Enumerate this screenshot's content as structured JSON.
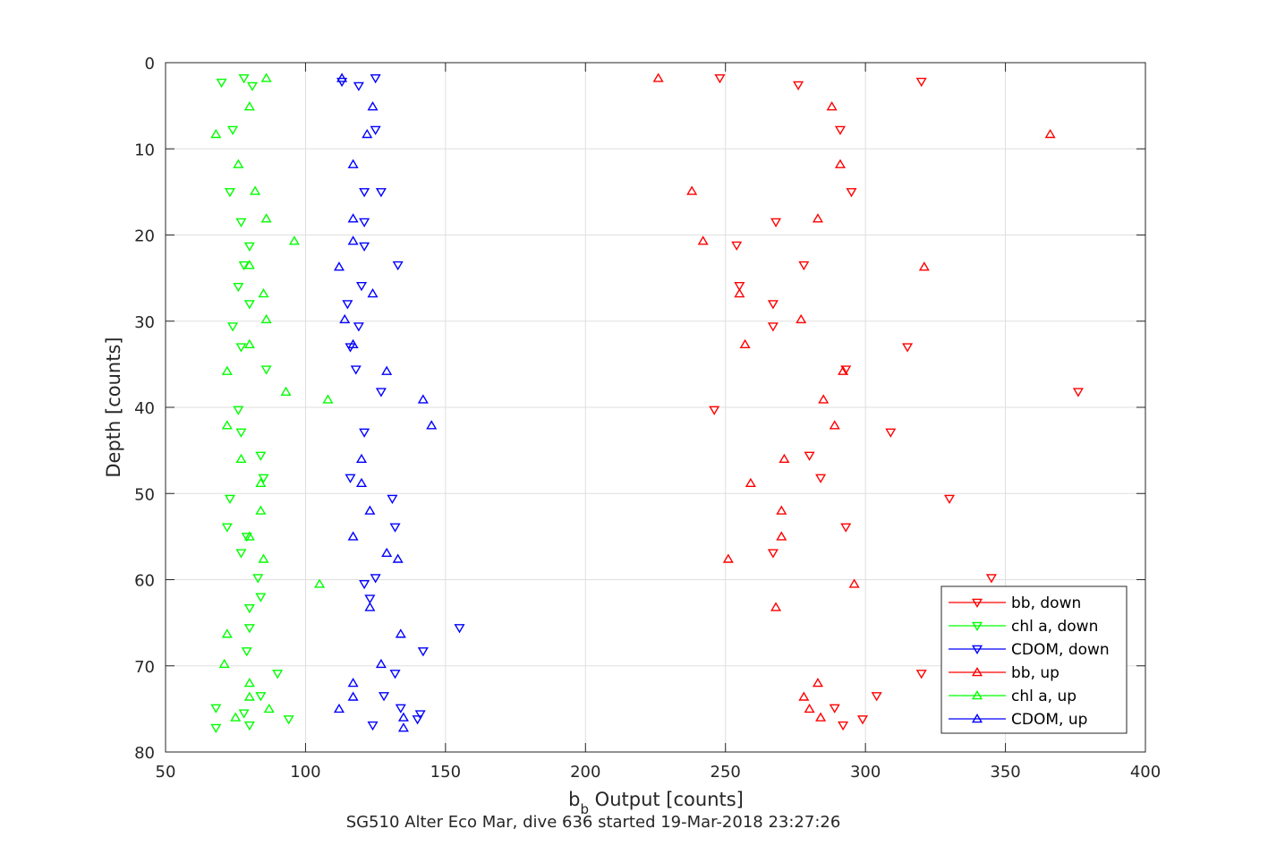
{
  "chart_data": {
    "type": "scatter",
    "xlabel_main": "b",
    "xlabel_sub": "b",
    "xlabel_rest": " Output [counts]",
    "ylabel": "Depth [counts]",
    "subtitle": "SG510 Alter Eco Mar, dive 636 started 19-Mar-2018 23:27:26",
    "xlim": [
      50,
      400
    ],
    "ylim": [
      0,
      80
    ],
    "y_reversed": true,
    "grid": true,
    "legend_position": "bottom-right",
    "xticks": [
      50,
      100,
      150,
      200,
      250,
      300,
      350,
      400
    ],
    "yticks": [
      0,
      10,
      20,
      30,
      40,
      50,
      60,
      70,
      80
    ],
    "series": [
      {
        "name": "bb, down",
        "color": "#ff0000",
        "marker": "triangle-down",
        "points": [
          [
            248,
            1.8
          ],
          [
            320,
            2.2
          ],
          [
            276,
            2.6
          ],
          [
            291,
            7.8
          ],
          [
            295,
            15.0
          ],
          [
            268,
            18.5
          ],
          [
            254,
            21.2
          ],
          [
            278,
            23.5
          ],
          [
            255,
            25.9
          ],
          [
            267,
            28.0
          ],
          [
            267,
            30.6
          ],
          [
            315,
            33.0
          ],
          [
            293,
            35.6
          ],
          [
            376,
            38.2
          ],
          [
            246,
            40.3
          ],
          [
            309,
            42.9
          ],
          [
            280,
            45.6
          ],
          [
            284,
            48.2
          ],
          [
            330,
            50.6
          ],
          [
            293,
            53.9
          ],
          [
            267,
            56.9
          ],
          [
            345,
            59.8
          ],
          [
            320,
            70.9
          ],
          [
            304,
            73.5
          ],
          [
            289,
            74.9
          ],
          [
            299,
            76.2
          ],
          [
            292,
            76.9
          ]
        ]
      },
      {
        "name": "chl a, down",
        "color": "#00ff00",
        "marker": "triangle-down",
        "points": [
          [
            78,
            1.8
          ],
          [
            70,
            2.3
          ],
          [
            81,
            2.7
          ],
          [
            74,
            7.8
          ],
          [
            73,
            15.0
          ],
          [
            77,
            18.5
          ],
          [
            80,
            21.3
          ],
          [
            78,
            23.5
          ],
          [
            76,
            26.0
          ],
          [
            80,
            28.0
          ],
          [
            74,
            30.6
          ],
          [
            77,
            33.0
          ],
          [
            86,
            35.6
          ],
          [
            76,
            40.3
          ],
          [
            77,
            42.9
          ],
          [
            84,
            45.6
          ],
          [
            85,
            48.2
          ],
          [
            73,
            50.6
          ],
          [
            72,
            53.9
          ],
          [
            79,
            55.0
          ],
          [
            77,
            56.9
          ],
          [
            83,
            59.8
          ],
          [
            84,
            62.0
          ],
          [
            80,
            63.3
          ],
          [
            80,
            65.6
          ],
          [
            79,
            68.3
          ],
          [
            90,
            70.9
          ],
          [
            84,
            73.5
          ],
          [
            68,
            74.9
          ],
          [
            94,
            76.2
          ],
          [
            78,
            75.5
          ],
          [
            80,
            76.9
          ],
          [
            68,
            77.2
          ]
        ]
      },
      {
        "name": "CDOM, down",
        "color": "#0000ff",
        "marker": "triangle-down",
        "points": [
          [
            125,
            1.8
          ],
          [
            113,
            2.2
          ],
          [
            119,
            2.7
          ],
          [
            125,
            7.8
          ],
          [
            121,
            15.0
          ],
          [
            127,
            15.0
          ],
          [
            121,
            18.5
          ],
          [
            121,
            21.3
          ],
          [
            133,
            23.5
          ],
          [
            120,
            25.9
          ],
          [
            115,
            28.0
          ],
          [
            119,
            30.6
          ],
          [
            116,
            33.0
          ],
          [
            118,
            35.6
          ],
          [
            127,
            38.2
          ],
          [
            121,
            42.9
          ],
          [
            116,
            48.2
          ],
          [
            131,
            50.6
          ],
          [
            132,
            53.9
          ],
          [
            125,
            59.8
          ],
          [
            121,
            60.5
          ],
          [
            123,
            62.2
          ],
          [
            155,
            65.6
          ],
          [
            142,
            68.3
          ],
          [
            132,
            70.9
          ],
          [
            128,
            73.5
          ],
          [
            134,
            74.9
          ],
          [
            141,
            75.6
          ],
          [
            140,
            76.2
          ],
          [
            124,
            76.9
          ]
        ]
      },
      {
        "name": "bb, up",
        "color": "#ff0000",
        "marker": "triangle-up",
        "points": [
          [
            226,
            1.8
          ],
          [
            288,
            5.1
          ],
          [
            366,
            8.3
          ],
          [
            291,
            11.8
          ],
          [
            238,
            14.9
          ],
          [
            283,
            18.1
          ],
          [
            242,
            20.7
          ],
          [
            321,
            23.7
          ],
          [
            255,
            26.8
          ],
          [
            277,
            29.8
          ],
          [
            257,
            32.7
          ],
          [
            292,
            35.8
          ],
          [
            285,
            39.1
          ],
          [
            289,
            42.1
          ],
          [
            271,
            46.0
          ],
          [
            259,
            48.8
          ],
          [
            270,
            52.0
          ],
          [
            270,
            55.0
          ],
          [
            251,
            57.6
          ],
          [
            296,
            60.5
          ],
          [
            268,
            63.2
          ],
          [
            283,
            72.0
          ],
          [
            278,
            73.6
          ],
          [
            280,
            75.0
          ],
          [
            284,
            76.0
          ]
        ]
      },
      {
        "name": "chl a, up",
        "color": "#00ff00",
        "marker": "triangle-up",
        "points": [
          [
            86,
            1.8
          ],
          [
            80,
            5.1
          ],
          [
            68,
            8.3
          ],
          [
            76,
            11.8
          ],
          [
            82,
            14.9
          ],
          [
            86,
            18.1
          ],
          [
            96,
            20.7
          ],
          [
            80,
            23.5
          ],
          [
            85,
            26.8
          ],
          [
            86,
            29.8
          ],
          [
            80,
            32.7
          ],
          [
            72,
            35.8
          ],
          [
            93,
            38.2
          ],
          [
            108,
            39.1
          ],
          [
            72,
            42.1
          ],
          [
            77,
            46.0
          ],
          [
            84,
            48.8
          ],
          [
            84,
            52.0
          ],
          [
            80,
            55.0
          ],
          [
            85,
            57.6
          ],
          [
            105,
            60.5
          ],
          [
            72,
            66.3
          ],
          [
            71,
            69.8
          ],
          [
            80,
            72.0
          ],
          [
            80,
            73.6
          ],
          [
            87,
            75.0
          ],
          [
            75,
            76.0
          ]
        ]
      },
      {
        "name": "CDOM, up",
        "color": "#0000ff",
        "marker": "triangle-up",
        "points": [
          [
            113,
            1.8
          ],
          [
            124,
            5.1
          ],
          [
            122,
            8.3
          ],
          [
            117,
            11.8
          ],
          [
            117,
            18.1
          ],
          [
            117,
            20.7
          ],
          [
            112,
            23.7
          ],
          [
            124,
            26.8
          ],
          [
            114,
            29.8
          ],
          [
            117,
            32.7
          ],
          [
            129,
            35.8
          ],
          [
            142,
            39.1
          ],
          [
            145,
            42.1
          ],
          [
            120,
            46.0
          ],
          [
            120,
            48.8
          ],
          [
            123,
            52.0
          ],
          [
            117,
            55.0
          ],
          [
            129,
            56.9
          ],
          [
            133,
            57.6
          ],
          [
            123,
            63.2
          ],
          [
            134,
            66.3
          ],
          [
            127,
            69.8
          ],
          [
            117,
            72.0
          ],
          [
            117,
            73.6
          ],
          [
            112,
            75.0
          ],
          [
            135,
            76.0
          ],
          [
            135,
            77.2
          ]
        ]
      }
    ]
  }
}
